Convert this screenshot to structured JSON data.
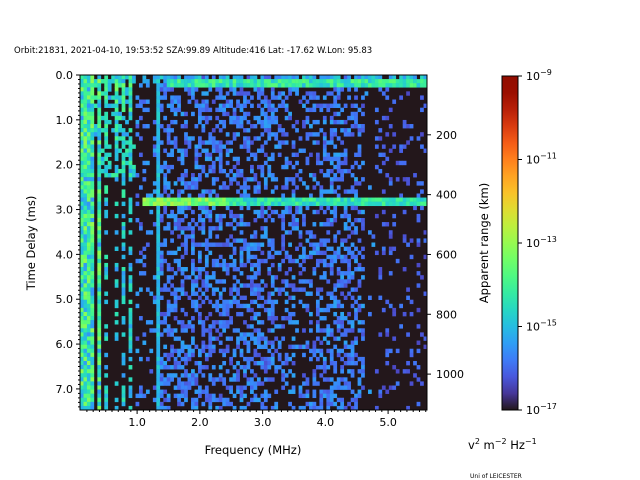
{
  "chart_data": {
    "type": "heatmap",
    "title": "Orbit:21831, 2021-04-10, 19:53:52 SZA:99.89 Altitude:416 Lat: -17.62 W.Lon: 95.83",
    "xlabel": "Frequency (MHz)",
    "ylabel": "Time Delay (ms)",
    "y2label": "Apparent range (km)",
    "colorbar_label": "v² m⁻² Hz⁻¹",
    "colorbar_label_parts": {
      "base1": "v",
      "exp1": "2",
      "base2": " m",
      "exp2": "−2",
      "base3": " Hz",
      "exp3": "−1"
    },
    "colormap": "turbo",
    "xlim": [
      0.09,
      5.62
    ],
    "ylim": [
      7.47,
      0.0
    ],
    "y2lim": [
      0,
      1120
    ],
    "clim_log10": [
      -17,
      -9
    ],
    "xticks": [
      {
        "v": 1,
        "label": "1.0"
      },
      {
        "v": 2,
        "label": "2.0"
      },
      {
        "v": 3,
        "label": "3.0"
      },
      {
        "v": 4,
        "label": "4.0"
      },
      {
        "v": 5,
        "label": "5.0"
      }
    ],
    "yticks": [
      {
        "v": 0,
        "label": "0.0"
      },
      {
        "v": 1,
        "label": "1.0"
      },
      {
        "v": 2,
        "label": "2.0"
      },
      {
        "v": 3,
        "label": "3.0"
      },
      {
        "v": 4,
        "label": "4.0"
      },
      {
        "v": 5,
        "label": "5.0"
      },
      {
        "v": 6,
        "label": "6.0"
      },
      {
        "v": 7,
        "label": "7.0"
      }
    ],
    "y2ticks": [
      {
        "v": 200,
        "label": "200"
      },
      {
        "v": 400,
        "label": "400"
      },
      {
        "v": 600,
        "label": "600"
      },
      {
        "v": 800,
        "label": "800"
      },
      {
        "v": 1000,
        "label": "1000"
      }
    ],
    "cticks": [
      {
        "v": -9,
        "base": "10",
        "exp": "−9"
      },
      {
        "v": -11,
        "base": "10",
        "exp": "−11"
      },
      {
        "v": -13,
        "base": "10",
        "exp": "−13"
      },
      {
        "v": -15,
        "base": "10",
        "exp": "−15"
      },
      {
        "v": -17,
        "base": "10",
        "exp": "−17"
      }
    ],
    "grid": {
      "freq_bins": 100,
      "delay_bins": 82,
      "background_log10": -17
    },
    "features": {
      "low_freq_lines_mhz": [
        0.12,
        0.2,
        0.27,
        0.4,
        0.52,
        0.65,
        0.8,
        0.9
      ],
      "line_1_3_mhz": 1.32,
      "echo_delay_ms": 2.85,
      "echo_freq_range_mhz": [
        1.1,
        5.62
      ],
      "top_band_delay_ms": [
        0.1,
        0.3
      ],
      "noise_freq_range_mhz": [
        1.0,
        4.8
      ]
    },
    "credit": "Uni of LEICESTER"
  }
}
